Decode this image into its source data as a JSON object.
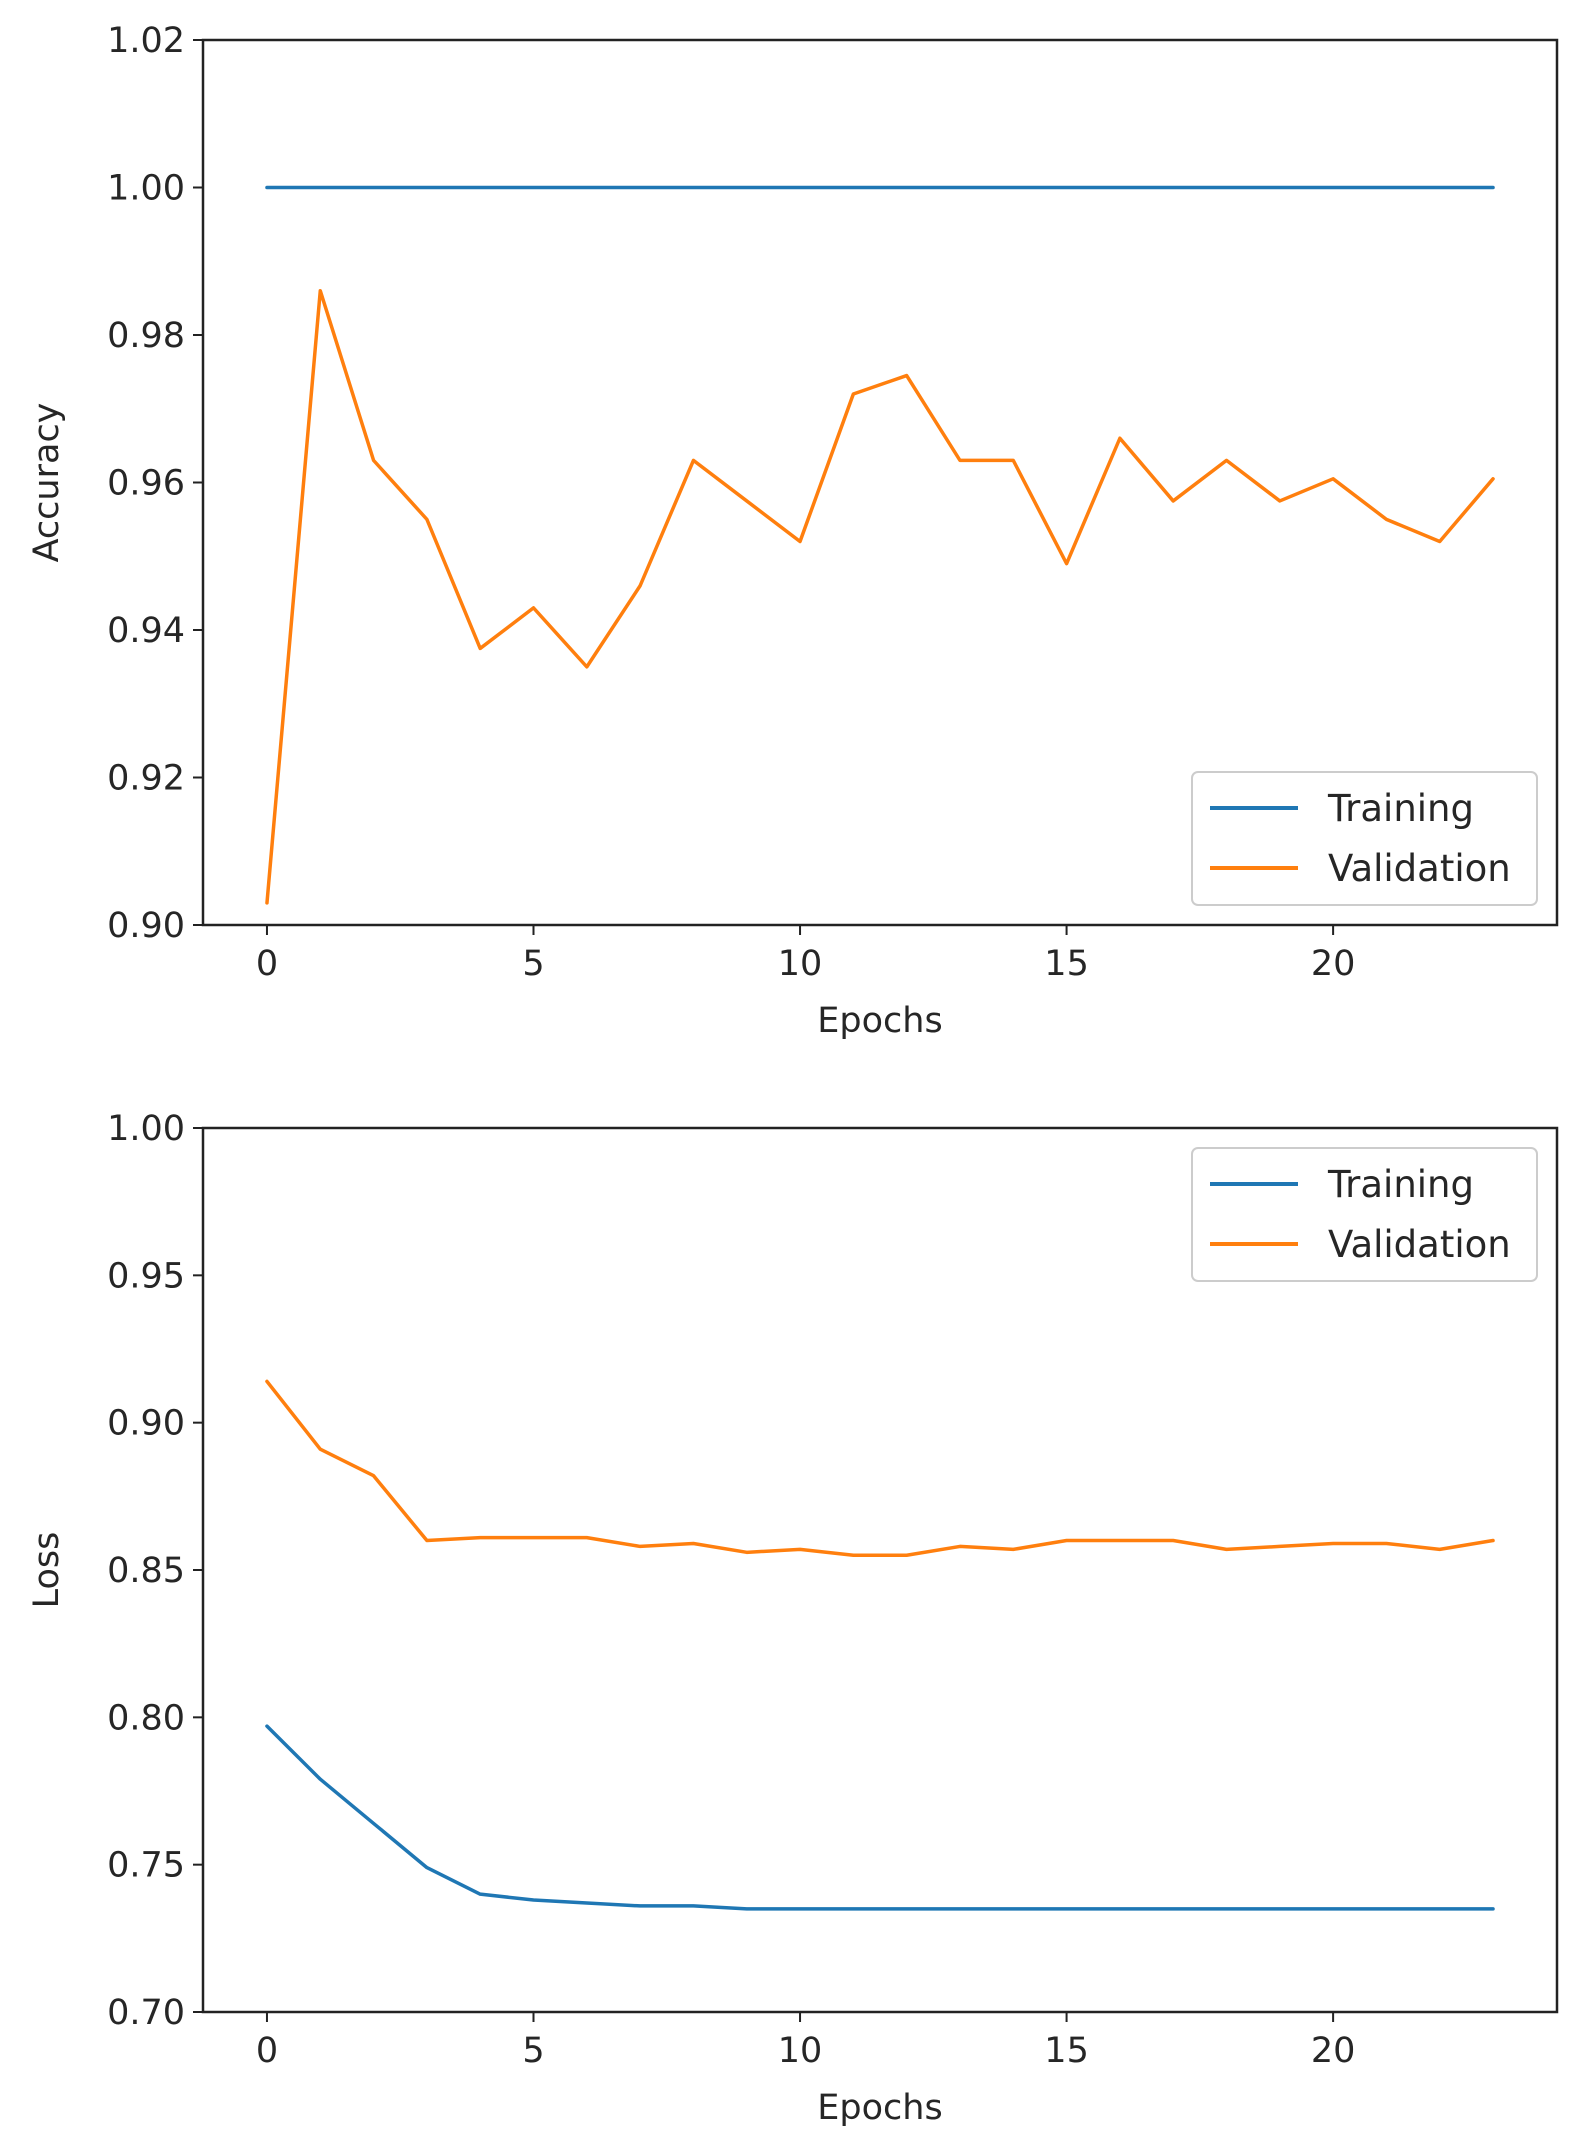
{
  "chart_data": [
    {
      "type": "line",
      "title": "",
      "xlabel": "Epochs",
      "ylabel": "Accuracy",
      "xlim": [
        -1.2,
        24.2
      ],
      "ylim": [
        0.9,
        1.02
      ],
      "xticks": [
        0,
        5,
        10,
        15,
        20
      ],
      "yticks": [
        0.9,
        0.92,
        0.94,
        0.96,
        0.98,
        1.0,
        1.02
      ],
      "ytick_decimals": 2,
      "legend_position": "lower-right",
      "x": [
        0,
        1,
        2,
        3,
        4,
        5,
        6,
        7,
        8,
        9,
        10,
        11,
        12,
        13,
        14,
        15,
        16,
        17,
        18,
        19,
        20,
        21,
        22,
        23
      ],
      "series": [
        {
          "name": "Training",
          "color": "#1f77b4",
          "values": [
            1.0,
            1.0,
            1.0,
            1.0,
            1.0,
            1.0,
            1.0,
            1.0,
            1.0,
            1.0,
            1.0,
            1.0,
            1.0,
            1.0,
            1.0,
            1.0,
            1.0,
            1.0,
            1.0,
            1.0,
            1.0,
            1.0,
            1.0,
            1.0
          ]
        },
        {
          "name": "Validation",
          "color": "#ff7f0e",
          "values": [
            0.903,
            0.986,
            0.963,
            0.955,
            0.9375,
            0.943,
            0.935,
            0.946,
            0.963,
            0.9575,
            0.952,
            0.972,
            0.9745,
            0.963,
            0.963,
            0.949,
            0.966,
            0.9575,
            0.963,
            0.9575,
            0.9605,
            0.955,
            0.952,
            0.9605
          ]
        }
      ]
    },
    {
      "type": "line",
      "title": "",
      "xlabel": "Epochs",
      "ylabel": "Loss",
      "xlim": [
        -1.2,
        24.2
      ],
      "ylim": [
        0.7,
        1.0
      ],
      "xticks": [
        0,
        5,
        10,
        15,
        20
      ],
      "yticks": [
        0.7,
        0.75,
        0.8,
        0.85,
        0.9,
        0.95,
        1.0
      ],
      "ytick_decimals": 2,
      "legend_position": "upper-right",
      "x": [
        0,
        1,
        2,
        3,
        4,
        5,
        6,
        7,
        8,
        9,
        10,
        11,
        12,
        13,
        14,
        15,
        16,
        17,
        18,
        19,
        20,
        21,
        22,
        23
      ],
      "series": [
        {
          "name": "Training",
          "color": "#1f77b4",
          "values": [
            0.797,
            0.779,
            0.764,
            0.749,
            0.74,
            0.738,
            0.737,
            0.736,
            0.736,
            0.735,
            0.735,
            0.735,
            0.735,
            0.735,
            0.735,
            0.735,
            0.735,
            0.735,
            0.735,
            0.735,
            0.735,
            0.735,
            0.735,
            0.735
          ]
        },
        {
          "name": "Validation",
          "color": "#ff7f0e",
          "values": [
            0.914,
            0.891,
            0.882,
            0.86,
            0.861,
            0.861,
            0.861,
            0.858,
            0.859,
            0.856,
            0.857,
            0.855,
            0.855,
            0.858,
            0.857,
            0.86,
            0.86,
            0.86,
            0.857,
            0.858,
            0.859,
            0.859,
            0.857,
            0.86
          ]
        }
      ]
    }
  ]
}
